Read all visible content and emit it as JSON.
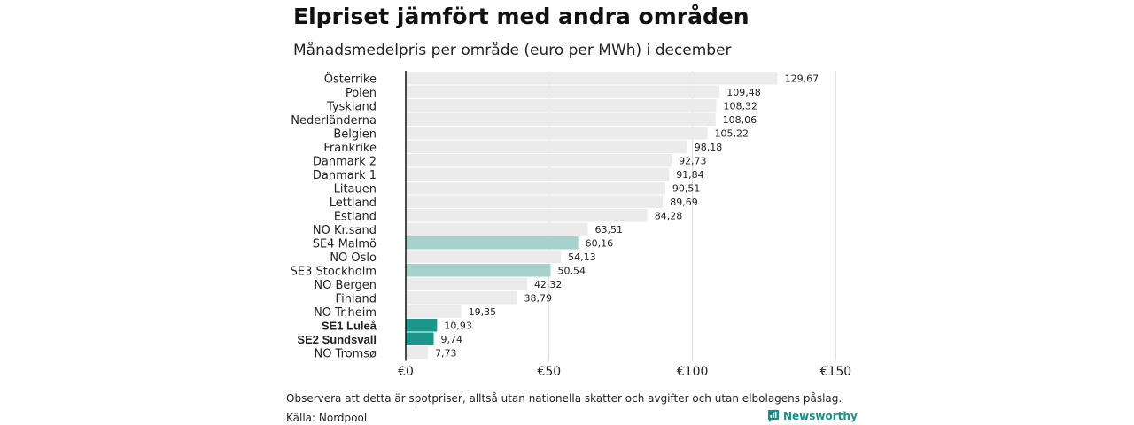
{
  "header": {
    "title": "Elpriset jämfört med andra områden",
    "subtitle": "Månadsmedelpris per område (euro per MWh) i december"
  },
  "footer": {
    "note": "Observera att detta är spotpriser, alltså utan nationella skatter och avgifter och utan elbolagens påslag.",
    "source": "Källa: Nordpool",
    "brand": "Newsworthy"
  },
  "colors": {
    "default_bar": "#ebebeb",
    "highlight_light": "#a6d2cb",
    "highlight_strong": "#1a968a",
    "brand": "#1a8f87"
  },
  "chart_data": {
    "type": "bar",
    "orientation": "horizontal",
    "title": "Elpriset jämfört med andra områden",
    "subtitle": "Månadsmedelpris per område (euro per MWh) i december",
    "categories": [
      "Österrike",
      "Polen",
      "Tyskland",
      "Nederländerna",
      "Belgien",
      "Frankrike",
      "Danmark  2",
      "Danmark  1",
      "Litauen",
      "Lettland",
      "Estland",
      "NO Kr.sand",
      "SE4  Malmö",
      "NO Oslo",
      "SE3  Stockholm",
      "NO Bergen",
      "Finland",
      "NO Tr.heim",
      "SE1 Luleå",
      "SE2 Sundsvall",
      "NO Tromsø"
    ],
    "values": [
      129.67,
      109.48,
      108.32,
      108.06,
      105.22,
      98.18,
      92.73,
      91.84,
      90.51,
      89.69,
      84.28,
      63.51,
      60.16,
      54.13,
      50.54,
      42.32,
      38.79,
      19.35,
      10.93,
      9.74,
      7.73
    ],
    "value_labels": [
      "129,67",
      "109,48",
      "108,32",
      "108,06",
      "105,22",
      "98,18",
      "92,73",
      "91,84",
      "90,51",
      "89,69",
      "84,28",
      "63,51",
      "60,16",
      "54,13",
      "50,54",
      "42,32",
      "38,79",
      "19,35",
      "10,93",
      "9,74",
      "7,73"
    ],
    "highlight": [
      "none",
      "none",
      "none",
      "none",
      "none",
      "none",
      "none",
      "none",
      "none",
      "none",
      "none",
      "none",
      "light",
      "none",
      "light",
      "none",
      "none",
      "none",
      "strong",
      "strong",
      "none"
    ],
    "x_ticks": [
      0,
      50,
      100,
      150
    ],
    "x_tick_labels": [
      "€0",
      "€50",
      "€100",
      "€150"
    ],
    "xlim": [
      0,
      150
    ],
    "grid": true
  }
}
